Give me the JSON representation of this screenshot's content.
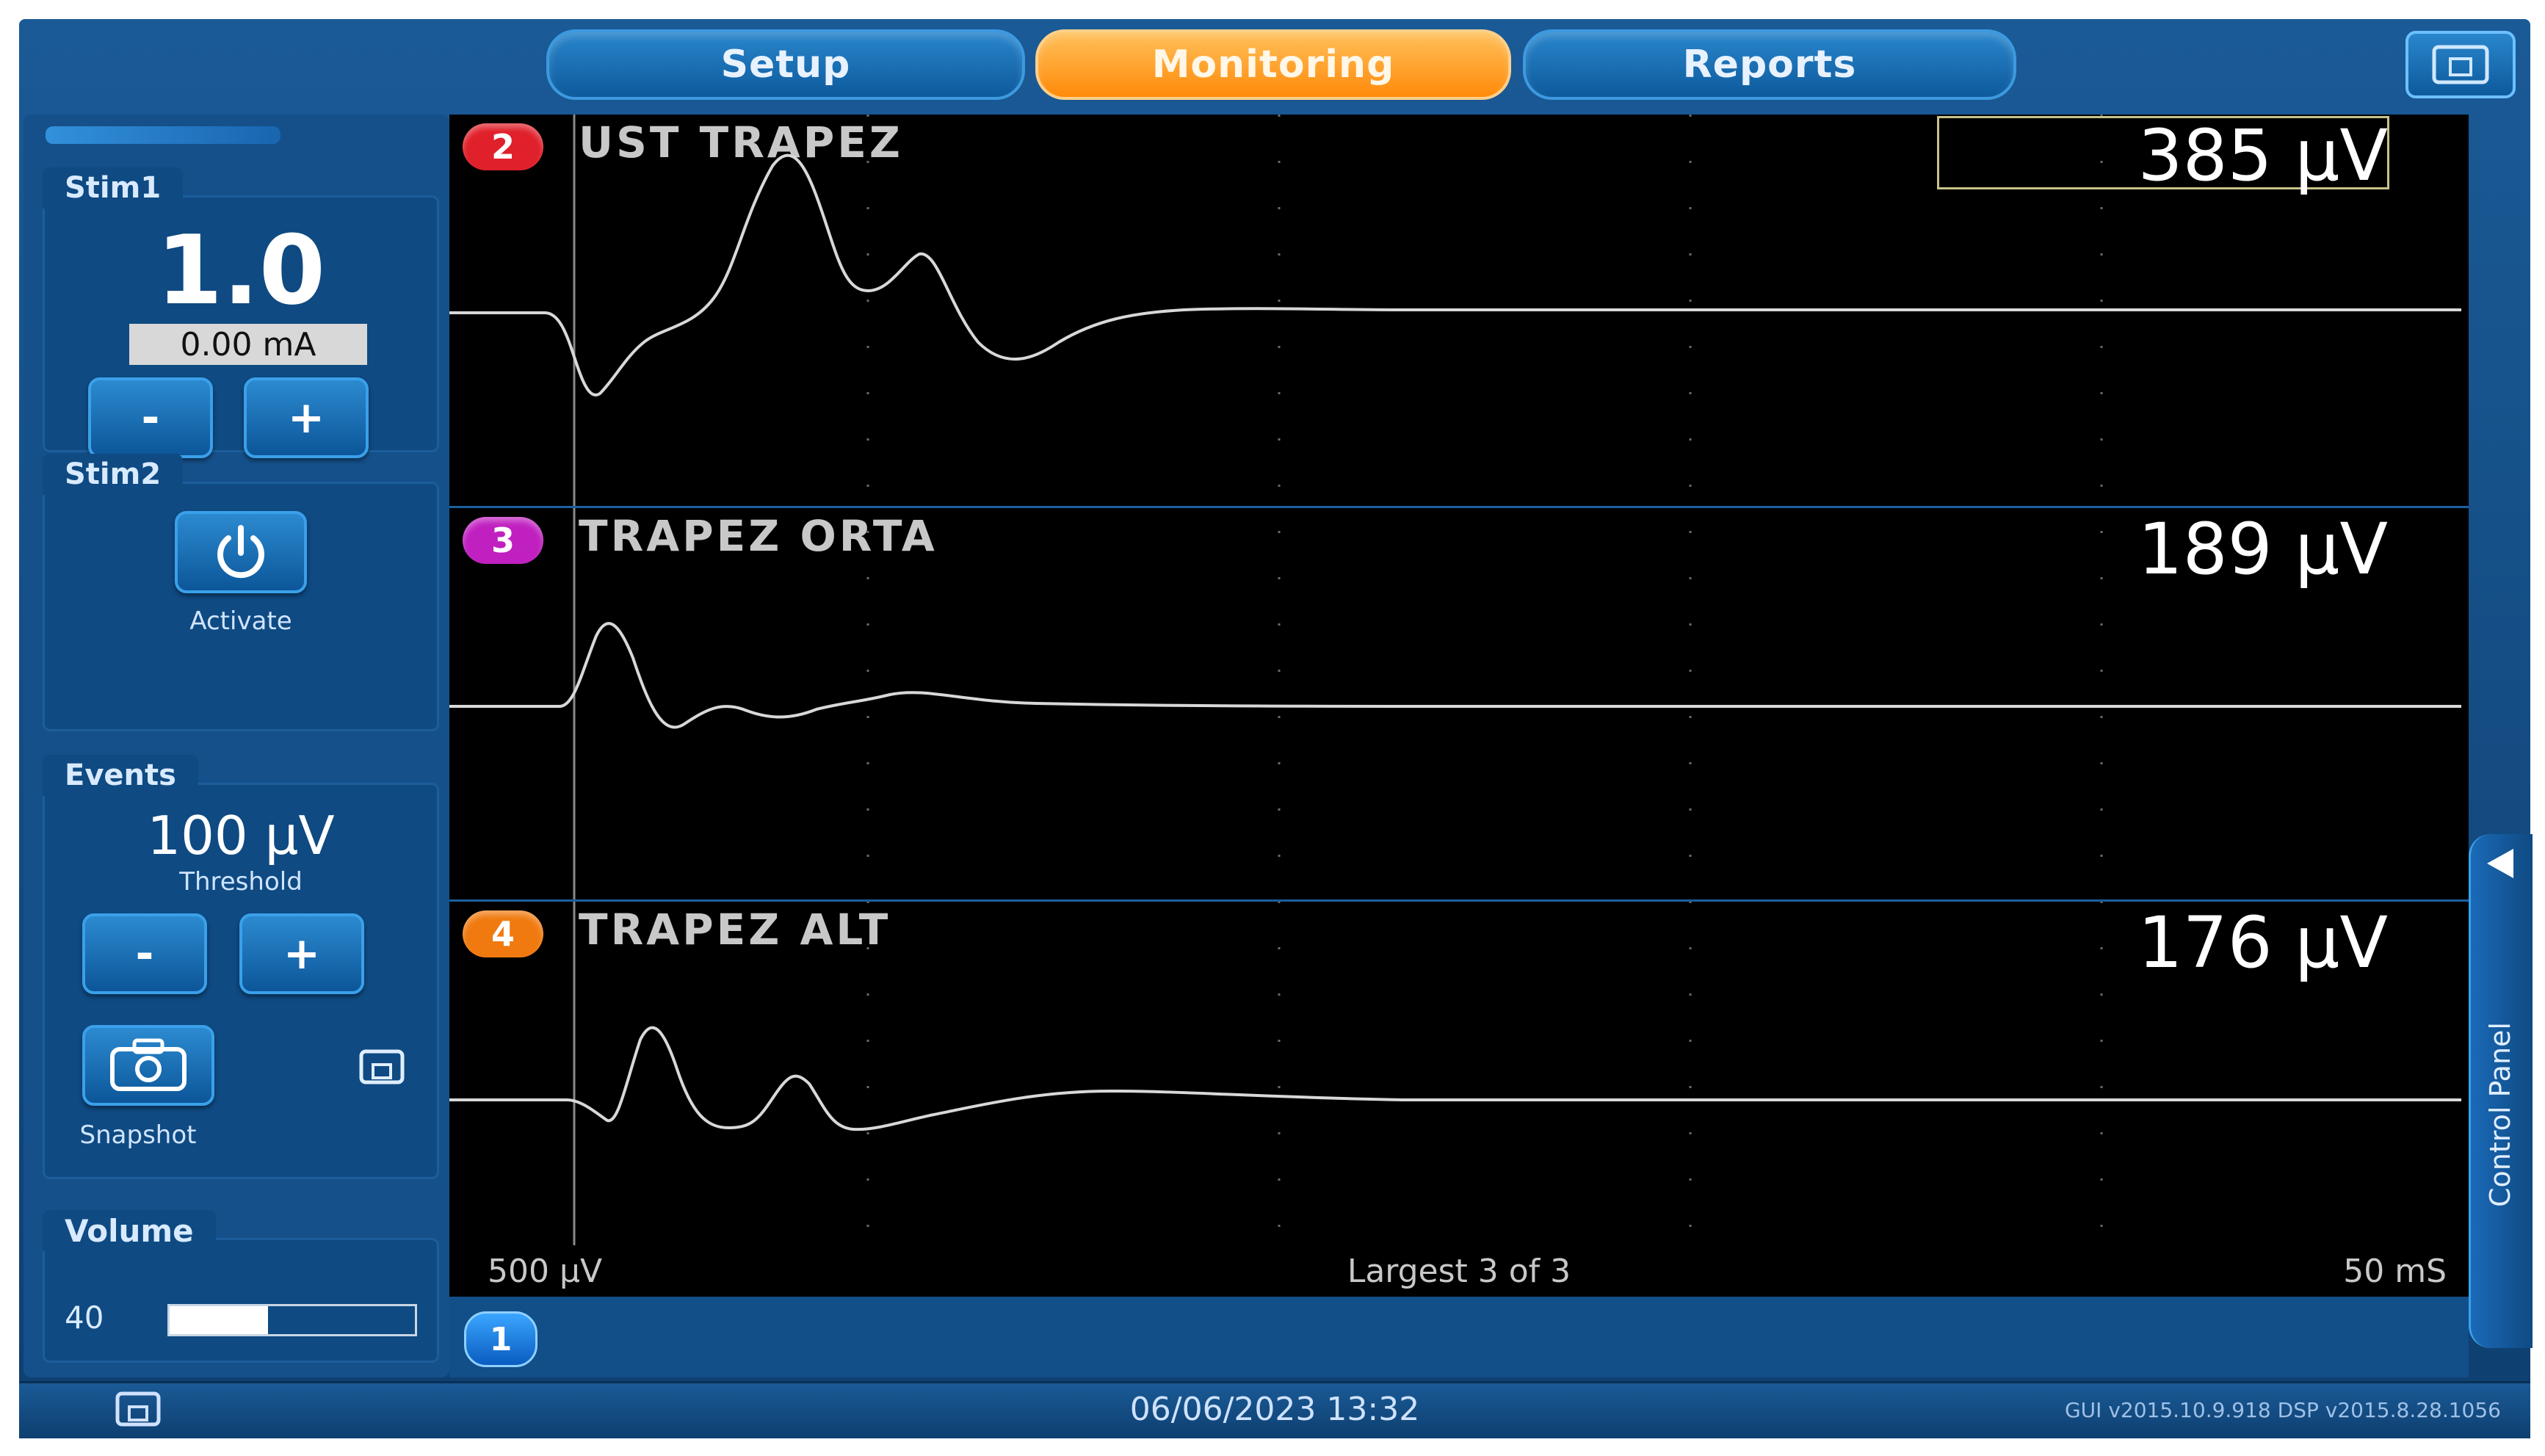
{
  "tabs": [
    {
      "label": "Setup",
      "active": false
    },
    {
      "label": "Monitoring",
      "active": true
    },
    {
      "label": "Reports",
      "active": false
    }
  ],
  "stim1": {
    "title": "Stim1",
    "value": "1.0",
    "current": "0.00 mA",
    "minus": "-",
    "plus": "+"
  },
  "stim2": {
    "title": "Stim2",
    "activate_label": "Activate"
  },
  "events": {
    "title": "Events",
    "threshold_value": "100 µV",
    "threshold_label": "Threshold",
    "minus": "-",
    "plus": "+",
    "snapshot_label": "Snapshot"
  },
  "volume": {
    "title": "Volume",
    "value": "40",
    "level_fraction": 0.4
  },
  "channels": [
    {
      "number": "2",
      "name": "UST TRAPEZ",
      "amplitude": "385 µV",
      "badge_color": "#e0202a",
      "selected": true
    },
    {
      "number": "3",
      "name": "TRAPEZ ORTA",
      "amplitude": "189 µV",
      "badge_color": "#c020c0",
      "selected": false
    },
    {
      "number": "4",
      "name": "TRAPEZ ALT",
      "amplitude": "176 µV",
      "badge_color": "#f07a10",
      "selected": false
    }
  ],
  "scope": {
    "vertical_scale": "500 µV",
    "summary": "Largest 3 of 3",
    "time_scale": "50 mS"
  },
  "channel1": {
    "number": "1"
  },
  "control_panel": {
    "label": "Control Panel"
  },
  "status": {
    "datetime": "06/06/2023 13:32",
    "versions": "GUI v2015.10.9.918   DSP v2015.8.28.1056"
  },
  "icons": {
    "top_right": "display-icon",
    "stim2_button": "power-icon",
    "snapshot": "camera-icon",
    "events_save": "save-icon",
    "status_left": "save-icon"
  }
}
